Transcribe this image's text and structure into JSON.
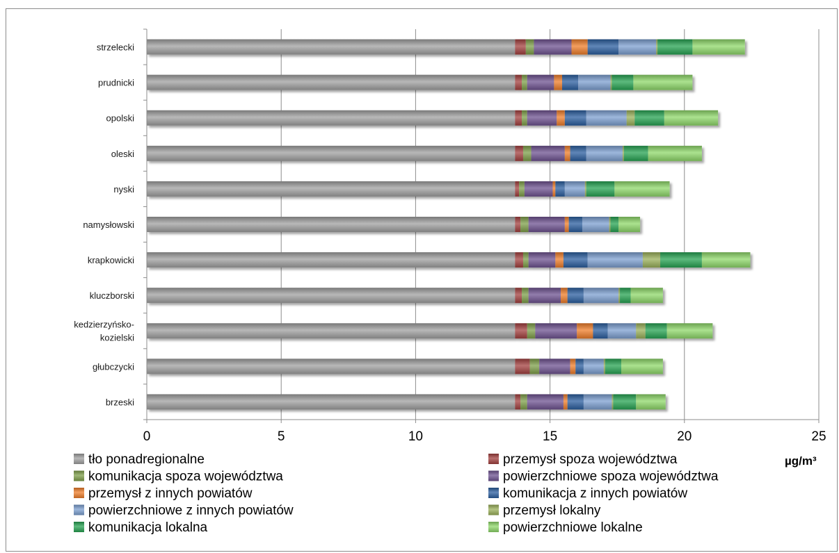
{
  "chart_data": {
    "type": "bar",
    "orientation": "horizontal",
    "stacked": true,
    "title": "",
    "xlabel": "µg/m³",
    "ylabel": "",
    "xlim": [
      0,
      25
    ],
    "x_ticks": [
      0,
      5,
      10,
      15,
      20,
      25
    ],
    "grid": true,
    "legend_position": "bottom",
    "categories": [
      "strzelecki",
      "prudnicki",
      "opolski",
      "oleski",
      "nyski",
      "namysłowski",
      "krapkowicki",
      "kluczborski",
      "kedzierzyńsko-kozielski",
      "głubczycki",
      "brzeski"
    ],
    "series": [
      {
        "name": "tło ponadregionalne",
        "color": "#a0a0a0",
        "values": [
          13.7,
          13.7,
          13.7,
          13.7,
          13.7,
          13.7,
          13.7,
          13.7,
          13.7,
          13.7,
          13.7
        ]
      },
      {
        "name": "przemysł spoza województwa",
        "color": "#a3403f",
        "values": [
          0.4,
          0.25,
          0.25,
          0.3,
          0.15,
          0.2,
          0.3,
          0.25,
          0.45,
          0.55,
          0.2
        ]
      },
      {
        "name": "komunikacja spoza województwa",
        "color": "#7e9f49",
        "values": [
          0.3,
          0.2,
          0.2,
          0.3,
          0.2,
          0.3,
          0.2,
          0.25,
          0.3,
          0.35,
          0.25
        ]
      },
      {
        "name": "powierzchniowe spoza województwa",
        "color": "#6e5290",
        "values": [
          1.4,
          1.0,
          1.1,
          1.25,
          1.05,
          1.35,
          1.0,
          1.2,
          1.55,
          1.15,
          1.35
        ]
      },
      {
        "name": "przemysł z innych powiatów",
        "color": "#ef7d2a",
        "values": [
          0.6,
          0.3,
          0.3,
          0.2,
          0.1,
          0.15,
          0.3,
          0.25,
          0.6,
          0.2,
          0.15
        ]
      },
      {
        "name": "komunikacja z innych powiatów",
        "color": "#2b5e9f",
        "values": [
          1.15,
          0.6,
          0.8,
          0.6,
          0.35,
          0.5,
          0.9,
          0.6,
          0.55,
          0.3,
          0.6
        ]
      },
      {
        "name": "powierzchniowe z innych powiatów",
        "color": "#7c9fd0",
        "values": [
          1.4,
          1.2,
          1.5,
          1.35,
          0.75,
          1.0,
          2.05,
          1.3,
          1.05,
          0.75,
          1.05
        ]
      },
      {
        "name": "przemysł lokalny",
        "color": "#9ab05a",
        "values": [
          0.05,
          0.05,
          0.3,
          0.05,
          0.05,
          0.05,
          0.65,
          0.05,
          0.35,
          0.05,
          0.05
        ]
      },
      {
        "name": "komunikacja lokalna",
        "color": "#27a352",
        "values": [
          1.3,
          0.8,
          1.1,
          0.9,
          1.05,
          0.3,
          1.55,
          0.4,
          0.8,
          0.6,
          0.85
        ]
      },
      {
        "name": "powierzchniowe lokalne",
        "color": "#8fd86a",
        "values": [
          1.95,
          2.2,
          2.0,
          2.0,
          2.05,
          0.8,
          1.8,
          1.2,
          1.7,
          1.55,
          1.1
        ]
      }
    ]
  }
}
